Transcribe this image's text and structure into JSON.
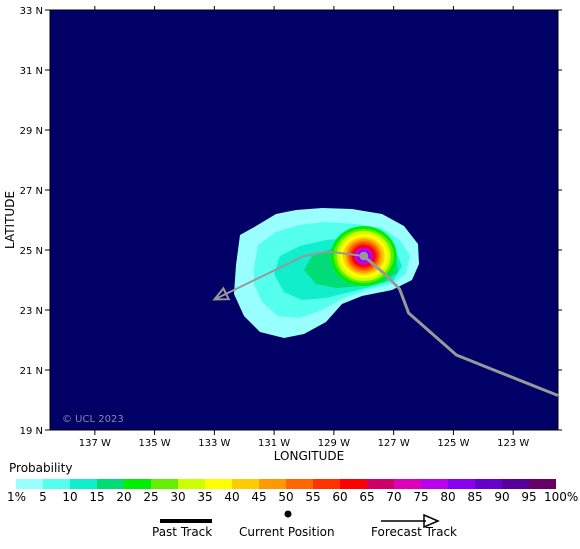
{
  "map": {
    "copyright": "© UCL 2023",
    "x_axis_title": "LONGITUDE",
    "y_axis_title": "LATITUDE",
    "lat_ticks": [
      "19 N",
      "21 N",
      "23 N",
      "25 N",
      "27 N",
      "29 N",
      "31 N",
      "33 N"
    ],
    "lon_ticks": [
      "137 W",
      "135 W",
      "133 W",
      "131 W",
      "129 W",
      "127 W",
      "125 W",
      "123 W"
    ],
    "lat_range": [
      19,
      33
    ],
    "lon_range": [
      -138.5,
      -121.5
    ],
    "ocean_color": "#000066",
    "track_color": "#999999",
    "current_position": {
      "lon": -128.0,
      "lat": 24.8
    },
    "forecast_track": [
      {
        "lon": -128.0,
        "lat": 24.8
      },
      {
        "lon": -129.2,
        "lat": 24.95
      },
      {
        "lon": -130.0,
        "lat": 24.8
      },
      {
        "lon": -133.0,
        "lat": 23.35
      }
    ],
    "past_track": [
      {
        "lon": -128.0,
        "lat": 24.8
      },
      {
        "lon": -127.3,
        "lat": 24.2
      },
      {
        "lon": -126.8,
        "lat": 23.7
      },
      {
        "lon": -126.5,
        "lat": 22.9
      },
      {
        "lon": -124.9,
        "lat": 21.5
      },
      {
        "lon": -123.9,
        "lat": 21.1
      },
      {
        "lon": -121.5,
        "lat": 20.15
      }
    ]
  },
  "legend": {
    "title": "Probability",
    "labels": [
      "1%",
      "5",
      "10",
      "15",
      "20",
      "25",
      "30",
      "35",
      "40",
      "45",
      "50",
      "55",
      "60",
      "65",
      "70",
      "75",
      "80",
      "85",
      "90",
      "95",
      "100%"
    ],
    "colors": [
      "#99ffff",
      "#55ffee",
      "#11eecc",
      "#00dd77",
      "#00ee00",
      "#66ee00",
      "#ccff00",
      "#ffff00",
      "#ffcc00",
      "#ff9900",
      "#ff6600",
      "#ff3300",
      "#ff0000",
      "#cc0066",
      "#dd00bb",
      "#bb00ee",
      "#8800ee",
      "#6600cc",
      "#550099",
      "#660066"
    ]
  },
  "key": {
    "past_track": "Past Track",
    "current_position": "Current Position",
    "forecast_track": "Forecast Track"
  }
}
